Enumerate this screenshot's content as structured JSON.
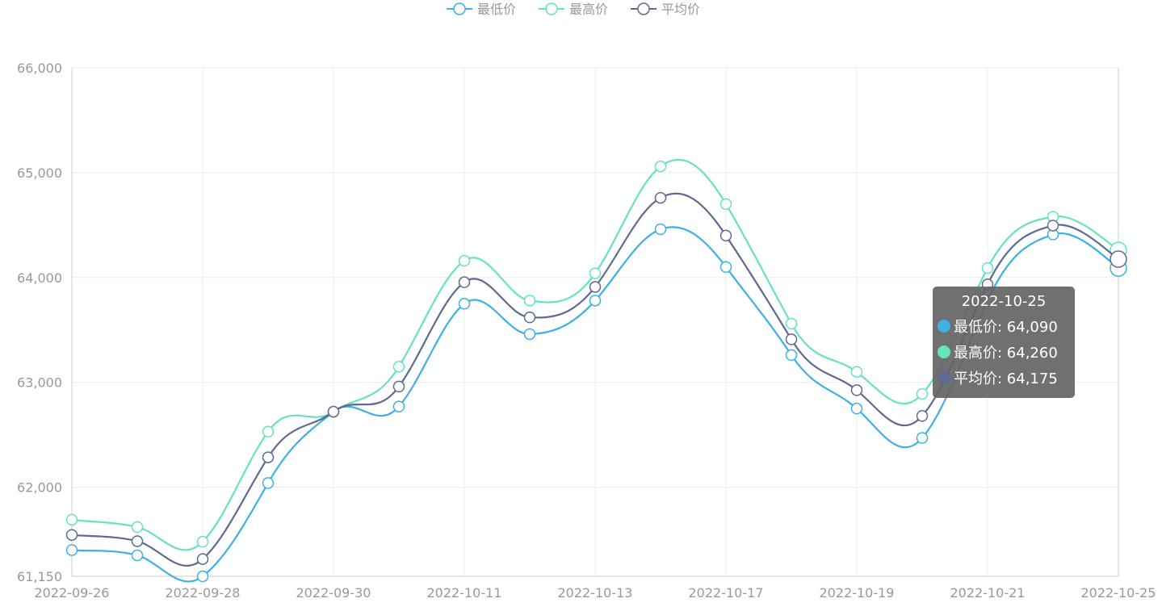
{
  "chart_data": {
    "type": "line",
    "smooth": true,
    "categories": [
      "2022-09-26",
      "",
      "2022-09-28",
      "",
      "2022-09-30",
      "",
      "2022-10-11",
      "",
      "2022-10-13",
      "",
      "2022-10-17",
      "",
      "2022-10-19",
      "",
      "2022-10-21",
      "",
      "2022-10-25"
    ],
    "ylim": [
      61150,
      66000
    ],
    "yticks": [
      61150,
      62000,
      63000,
      64000,
      65000,
      66000
    ],
    "ytick_labels": [
      "61,150",
      "62,000",
      "63,000",
      "64,000",
      "65,000",
      "66,000"
    ],
    "grid": true,
    "legend_position": "top-center",
    "series": [
      {
        "name": "最低价",
        "color": "#3eb1e3",
        "values": [
          61400,
          61350,
          61150,
          62040,
          62720,
          62770,
          63750,
          63460,
          63780,
          64460,
          64100,
          63260,
          62750,
          62470,
          63780,
          64410,
          64090
        ]
      },
      {
        "name": "最高价",
        "color": "#66e3bd",
        "values": [
          61690,
          61620,
          61480,
          62530,
          62720,
          63150,
          64160,
          63780,
          64040,
          65060,
          64700,
          63560,
          63100,
          62890,
          64090,
          64580,
          64260
        ]
      },
      {
        "name": "平均价",
        "color": "#5e6a8f",
        "values": [
          61545,
          61485,
          61315,
          62285,
          62720,
          62960,
          63955,
          63620,
          63910,
          64760,
          64400,
          63410,
          62925,
          62680,
          63935,
          64495,
          64175
        ]
      }
    ]
  },
  "tooltip": {
    "title": "2022-10-25",
    "rows": [
      "最低价: 64,090",
      "最高价: 64,260",
      "平均价: 64,175"
    ]
  }
}
